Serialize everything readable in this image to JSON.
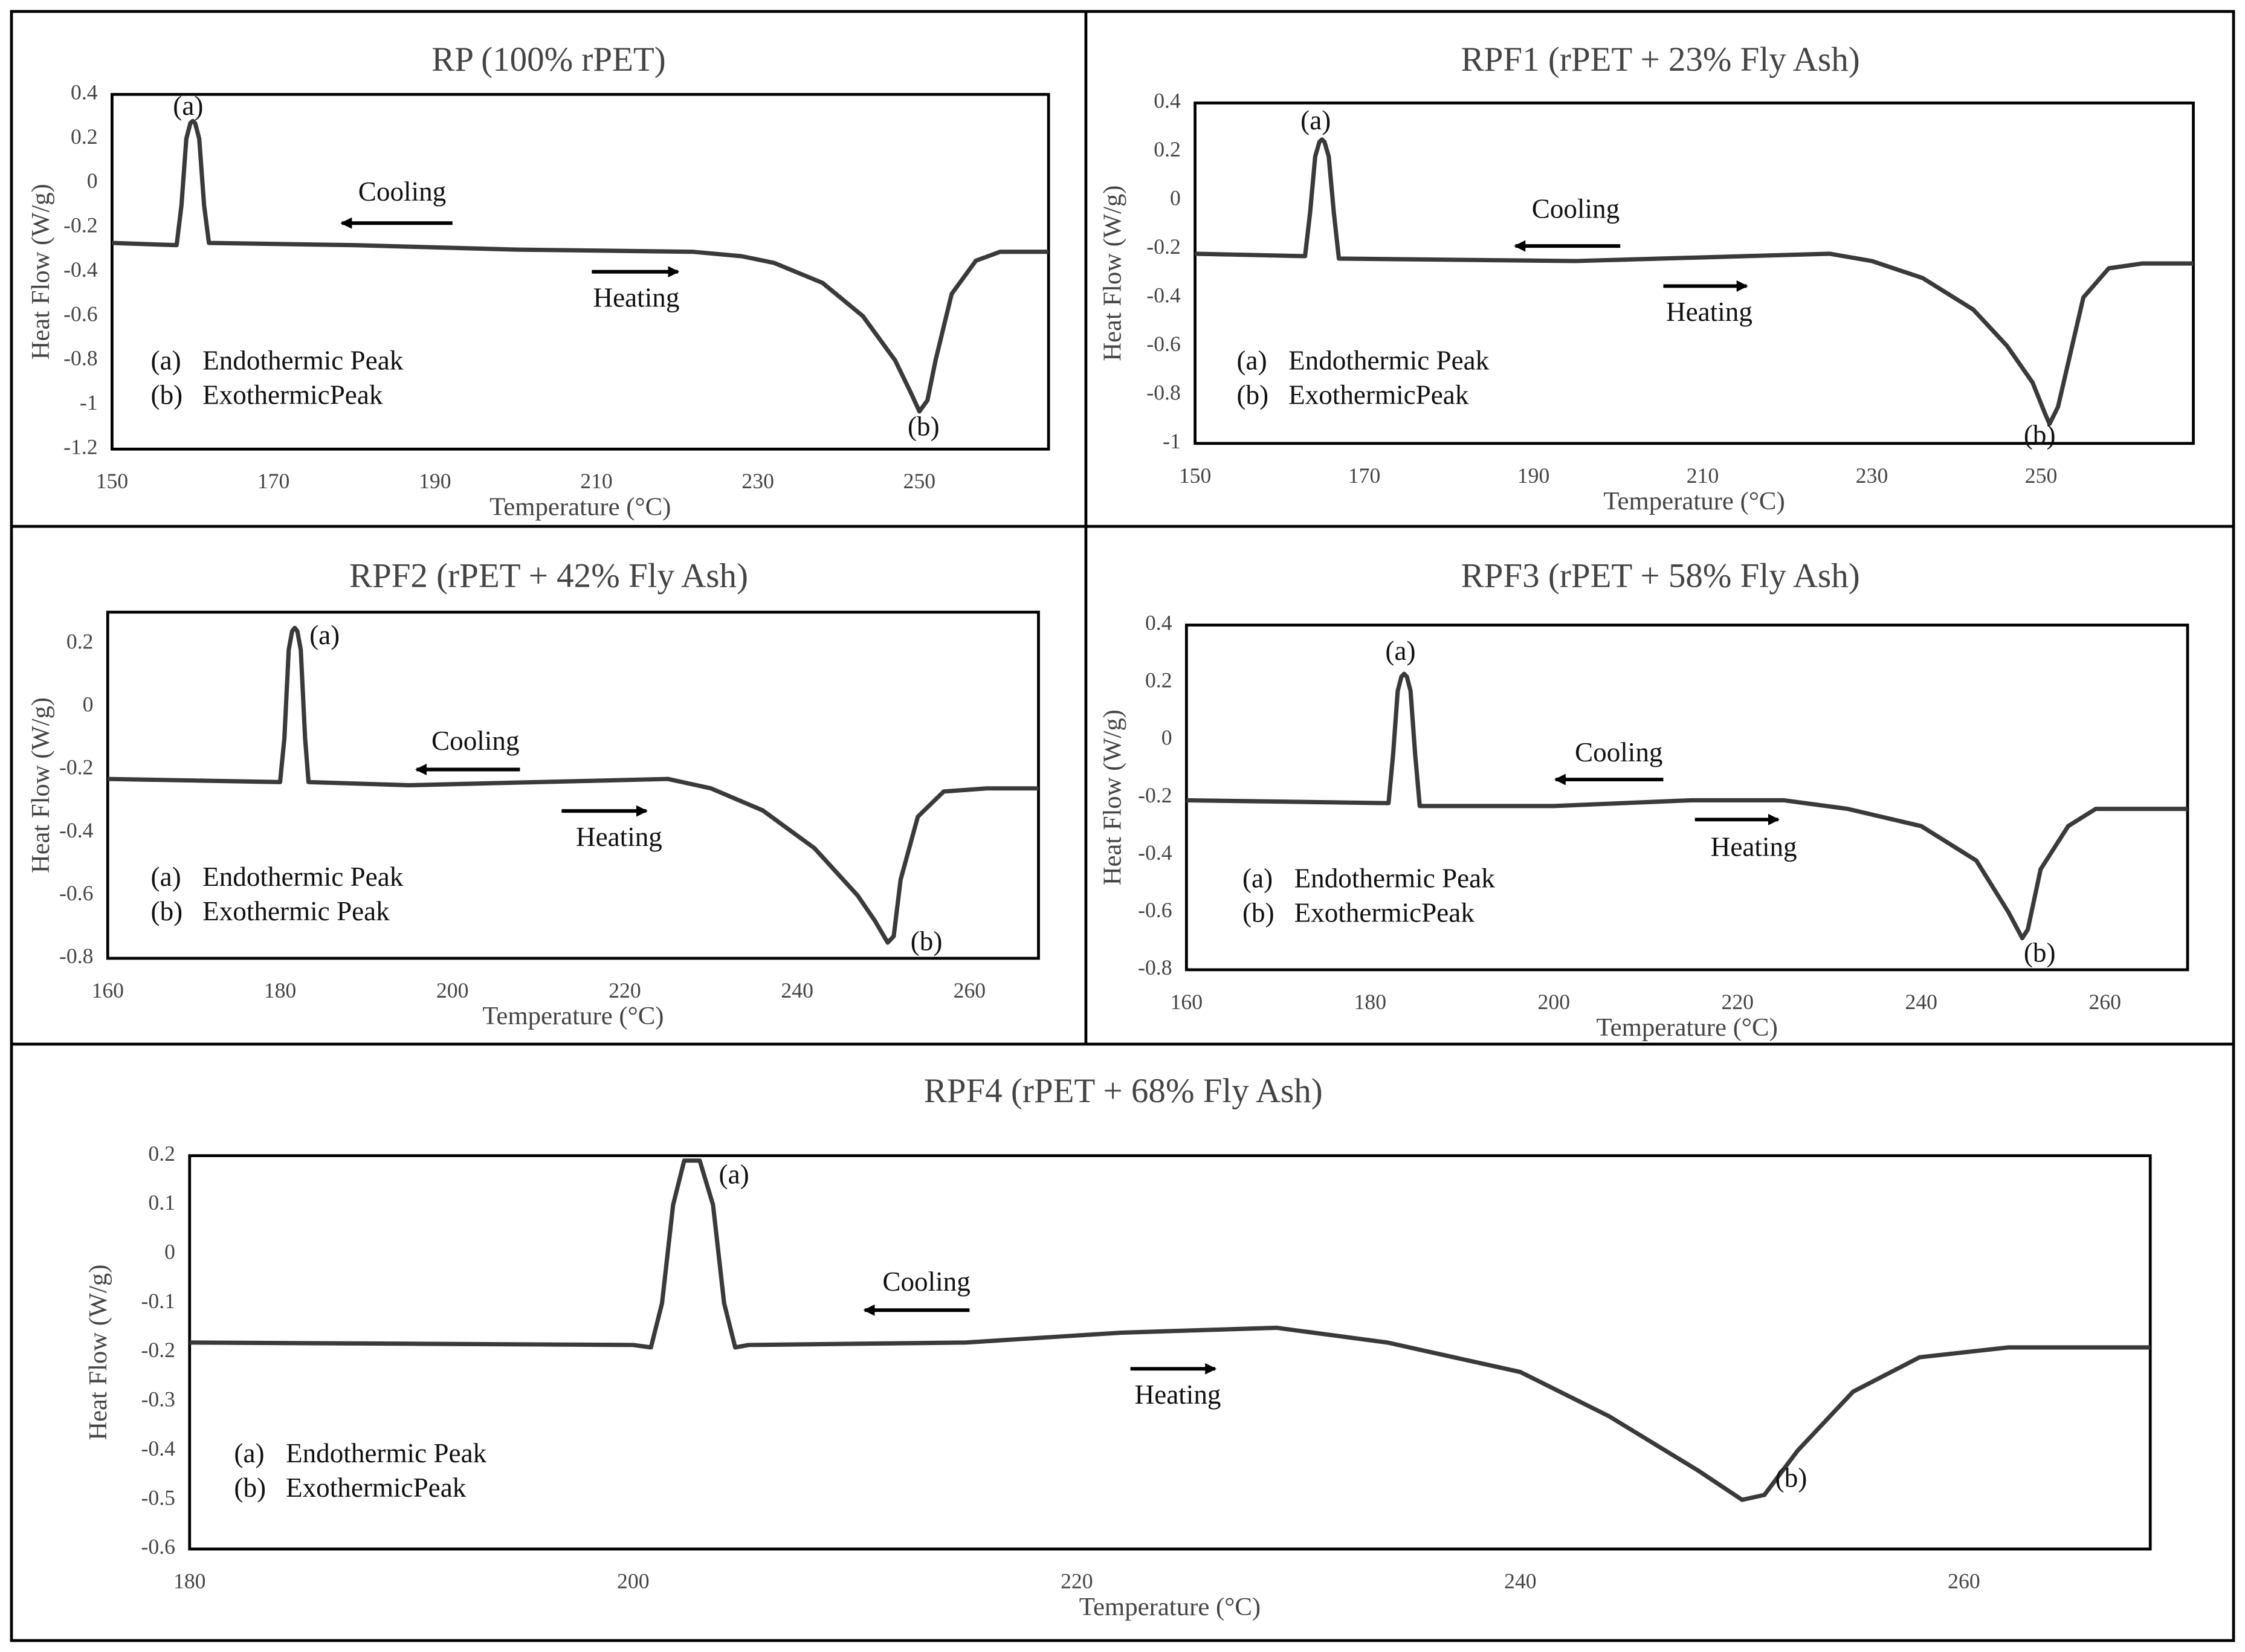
{
  "chart_data": [
    {
      "type": "line",
      "title": "RP (100% rPET)",
      "x_label": "Temperature (°C)",
      "y_label": "Heat Flow (W/g)",
      "xlim": [
        150,
        266
      ],
      "ylim": [
        -1.2,
        0.4
      ],
      "xticks": [
        150,
        170,
        190,
        210,
        230,
        250
      ],
      "yticks": [
        -1.2,
        -1,
        -0.8,
        -0.6,
        -0.4,
        -0.2,
        0,
        0.2,
        0.4
      ],
      "series": [
        {
          "color": "#3a3a3a",
          "x": [
            150,
            158,
            158.6,
            159.2,
            159.7,
            160,
            160.3,
            160.8,
            161.4,
            162,
            180,
            200,
            222,
            228,
            232,
            238,
            243,
            247,
            249,
            250,
            251,
            252,
            254,
            257,
            260,
            266
          ],
          "values": [
            -0.27,
            -0.28,
            -0.1,
            0.2,
            0.27,
            0.28,
            0.27,
            0.2,
            -0.1,
            -0.27,
            -0.28,
            -0.3,
            -0.31,
            -0.33,
            -0.36,
            -0.45,
            -0.6,
            -0.8,
            -0.95,
            -1.03,
            -0.98,
            -0.8,
            -0.5,
            -0.35,
            -0.31,
            -0.31
          ]
        }
      ],
      "annotations": {
        "peak_a": "(a)",
        "peak_b": "(b)",
        "cooling": "Cooling",
        "heating": "Heating",
        "legend": [
          {
            "marker": "(a)",
            "text": "Endothermic Peak"
          },
          {
            "marker": "(b)",
            "text": "ExothermicPeak"
          }
        ]
      }
    },
    {
      "type": "line",
      "title": "RPF1 (rPET + 23% Fly Ash)",
      "x_label": "Temperature (°C)",
      "y_label": "Heat Flow (W/g)",
      "xlim": [
        150,
        268
      ],
      "ylim": [
        -1,
        0.4
      ],
      "xticks": [
        150,
        170,
        190,
        210,
        230,
        250
      ],
      "yticks": [
        -1,
        -0.8,
        -0.6,
        -0.4,
        -0.2,
        0,
        0.2,
        0.4
      ],
      "series": [
        {
          "color": "#3a3a3a",
          "x": [
            150,
            163,
            163.6,
            164.2,
            164.7,
            165,
            165.3,
            165.8,
            166.4,
            167,
            195,
            215,
            225,
            230,
            236,
            242,
            246,
            249,
            250.5,
            251,
            252,
            253,
            255,
            258,
            262,
            268
          ],
          "values": [
            -0.22,
            -0.23,
            -0.05,
            0.18,
            0.24,
            0.25,
            0.24,
            0.18,
            -0.05,
            -0.24,
            -0.25,
            -0.23,
            -0.22,
            -0.25,
            -0.32,
            -0.45,
            -0.6,
            -0.75,
            -0.88,
            -0.92,
            -0.85,
            -0.7,
            -0.4,
            -0.28,
            -0.26,
            -0.26
          ]
        }
      ],
      "annotations": {
        "peak_a": "(a)",
        "peak_b": "(b)",
        "cooling": "Cooling",
        "heating": "Heating",
        "legend": [
          {
            "marker": "(a)",
            "text": "Endothermic Peak"
          },
          {
            "marker": "(b)",
            "text": "ExothermicPeak"
          }
        ]
      }
    },
    {
      "type": "line",
      "title": "RPF2 (rPET + 42% Fly Ash)",
      "x_label": "Temperature (°C)",
      "y_label": "Heat Flow (W/g)",
      "xlim": [
        160,
        268
      ],
      "ylim": [
        -0.8,
        0.3
      ],
      "xticks": [
        160,
        180,
        200,
        220,
        240,
        260
      ],
      "yticks": [
        -0.8,
        -0.6,
        -0.4,
        -0.2,
        0,
        0.2
      ],
      "series": [
        {
          "color": "#3a3a3a",
          "x": [
            160,
            180,
            180.5,
            181,
            181.4,
            181.7,
            182,
            182.4,
            182.9,
            183.3,
            195,
            210,
            225,
            230,
            236,
            242,
            247,
            249,
            250.5,
            251.2,
            252,
            254,
            257,
            262,
            268
          ],
          "values": [
            -0.23,
            -0.24,
            -0.1,
            0.18,
            0.24,
            0.25,
            0.24,
            0.18,
            -0.1,
            -0.24,
            -0.25,
            -0.24,
            -0.23,
            -0.26,
            -0.33,
            -0.45,
            -0.6,
            -0.68,
            -0.75,
            -0.73,
            -0.55,
            -0.35,
            -0.27,
            -0.26,
            -0.26
          ]
        }
      ],
      "annotations": {
        "peak_a": "(a)",
        "peak_b": "(b)",
        "cooling": "Cooling",
        "heating": "Heating",
        "legend": [
          {
            "marker": "(a)",
            "text": "Endothermic Peak"
          },
          {
            "marker": "(b)",
            "text": "Exothermic Peak"
          }
        ]
      }
    },
    {
      "type": "line",
      "title": "RPF3 (rPET + 58% Fly Ash)",
      "x_label": "Temperature (°C)",
      "y_label": "Heat Flow (W/g)",
      "xlim": [
        160,
        269
      ],
      "ylim": [
        -0.8,
        0.4
      ],
      "xticks": [
        160,
        180,
        200,
        220,
        240,
        260
      ],
      "yticks": [
        -0.8,
        -0.6,
        -0.4,
        -0.2,
        0,
        0.2,
        0.4
      ],
      "series": [
        {
          "color": "#3a3a3a",
          "x": [
            160,
            182,
            182.5,
            183,
            183.4,
            183.7,
            184,
            184.4,
            184.9,
            185.4,
            200,
            215,
            225,
            232,
            240,
            246,
            249.5,
            251,
            251.6,
            253,
            256,
            259,
            269
          ],
          "values": [
            -0.21,
            -0.22,
            -0.05,
            0.17,
            0.22,
            0.23,
            0.22,
            0.17,
            -0.05,
            -0.23,
            -0.23,
            -0.21,
            -0.21,
            -0.24,
            -0.3,
            -0.42,
            -0.6,
            -0.69,
            -0.66,
            -0.45,
            -0.3,
            -0.24,
            -0.24
          ]
        }
      ],
      "annotations": {
        "peak_a": "(a)",
        "peak_b": "(b)",
        "cooling": "Cooling",
        "heating": "Heating",
        "legend": [
          {
            "marker": "(a)",
            "text": "Endothermic Peak"
          },
          {
            "marker": "(b)",
            "text": "ExothermicPeak"
          }
        ]
      }
    },
    {
      "type": "line",
      "title": "RPF4 (rPET + 68% Fly Ash)",
      "x_label": "Temperature (°C)",
      "y_label": "Heat Flow (W/g)",
      "xlim": [
        180,
        268.4
      ],
      "ylim": [
        -0.6,
        0.2
      ],
      "xticks": [
        180,
        200,
        220,
        240,
        260
      ],
      "yticks": [
        -0.6,
        -0.5,
        -0.4,
        -0.3,
        -0.2,
        -0.1,
        0,
        0.1,
        0.2
      ],
      "series": [
        {
          "color": "#3a3a3a",
          "x": [
            180,
            200,
            200.8,
            201.3,
            201.8,
            202.3,
            203,
            203.6,
            204.1,
            204.6,
            205.2,
            215,
            222,
            229,
            234,
            240,
            244,
            248,
            250,
            251,
            252.5,
            255,
            258,
            262,
            268.4
          ],
          "values": [
            -0.18,
            -0.185,
            -0.19,
            -0.1,
            0.1,
            0.19,
            0.19,
            0.1,
            -0.1,
            -0.19,
            -0.185,
            -0.18,
            -0.16,
            -0.15,
            -0.18,
            -0.24,
            -0.33,
            -0.44,
            -0.5,
            -0.49,
            -0.4,
            -0.28,
            -0.21,
            -0.19,
            -0.19
          ]
        }
      ],
      "annotations": {
        "peak_a": "(a)",
        "peak_b": "(b)",
        "cooling": "Cooling",
        "heating": "Heating",
        "legend": [
          {
            "marker": "(a)",
            "text": "Endothermic Peak"
          },
          {
            "marker": "(b)",
            "text": "ExothermicPeak"
          }
        ]
      }
    }
  ]
}
